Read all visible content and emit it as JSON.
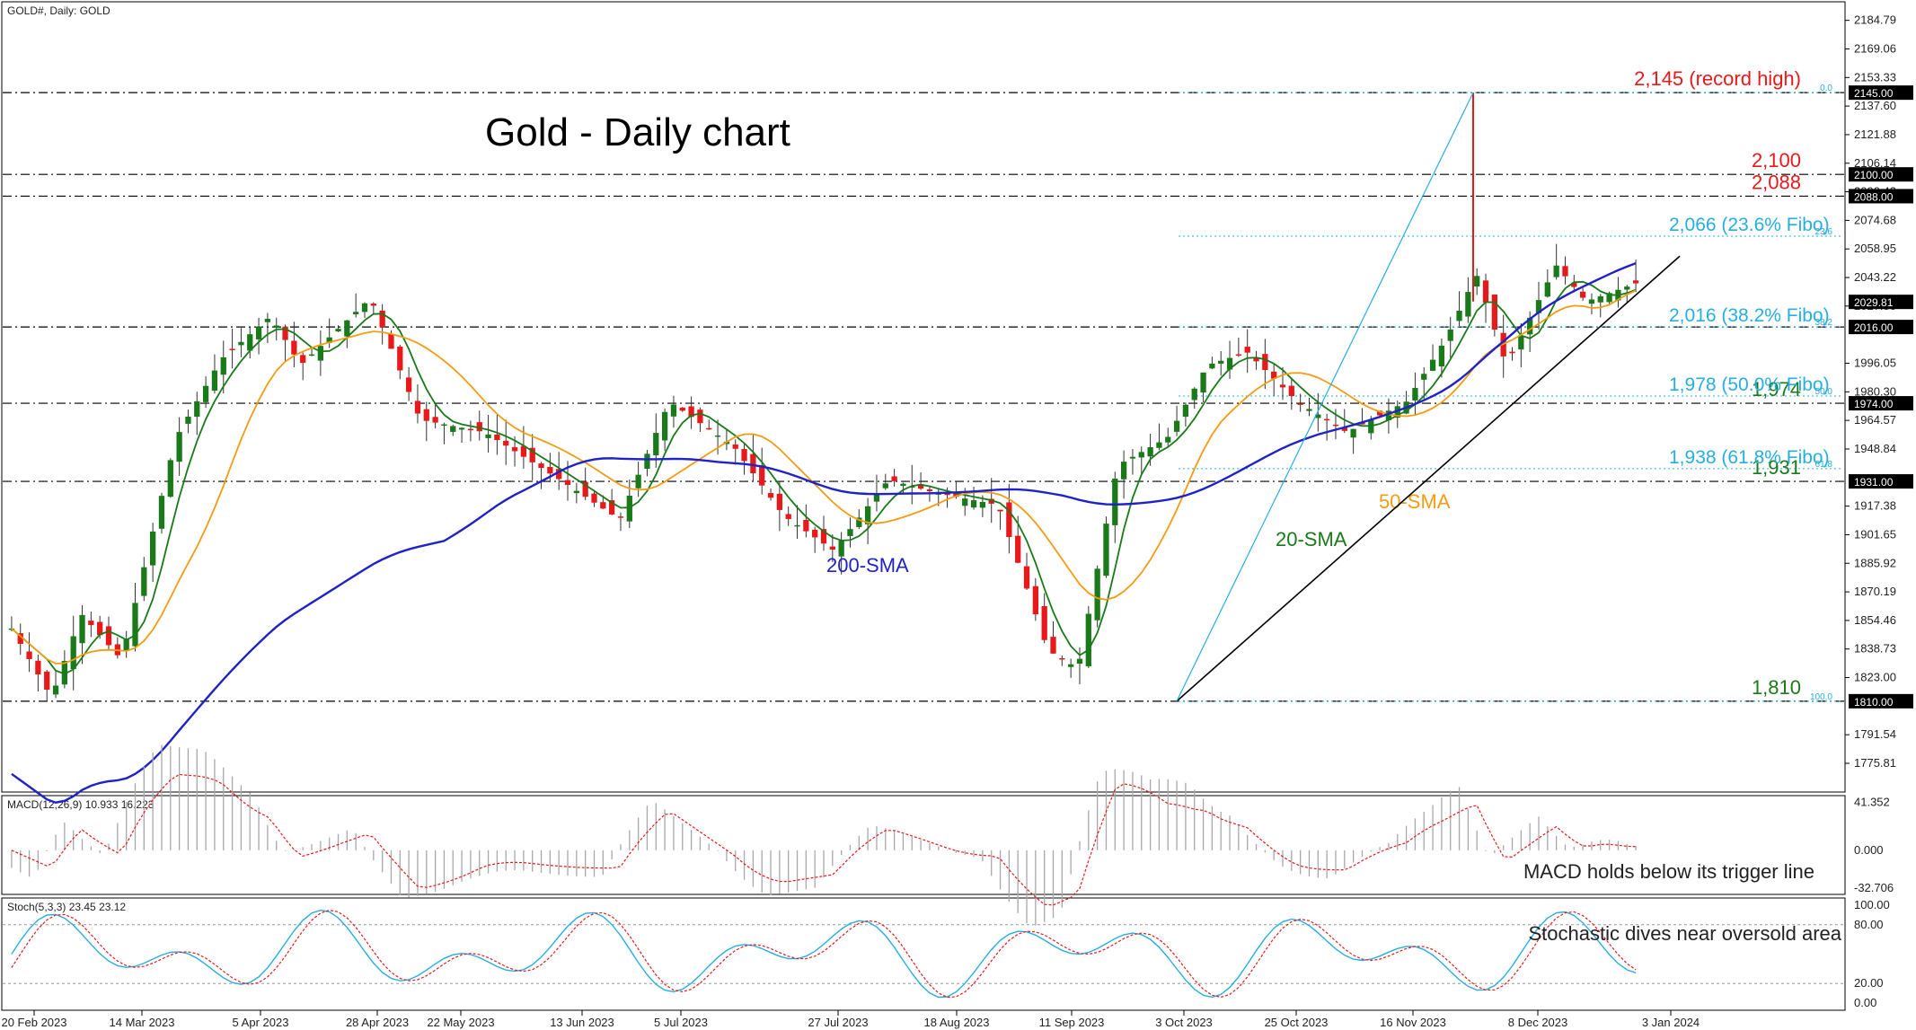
{
  "window": {
    "symbol_label": "GOLD#, Daily:  GOLD",
    "macd_label": "MACD(12,26,9) 10.933 16.223",
    "stoch_label": "Stoch(5,3,3) 23.45 23.12"
  },
  "chart_data": [
    {
      "type": "candlestick",
      "title": "Gold - Daily chart",
      "ylim": [
        1760,
        2195
      ],
      "price_ticks": [
        "2184.79",
        "2169.06",
        "2153.33",
        "2137.60",
        "2121.88",
        "2106.14",
        "2090.42",
        "2074.68",
        "2058.95",
        "2043.22",
        "2027.50",
        "1996.05",
        "1980.30",
        "1964.57",
        "1948.84",
        "1917.38",
        "1901.65",
        "1885.92",
        "1870.19",
        "1854.46",
        "1838.73",
        "1823.00",
        "1791.54",
        "1775.81"
      ],
      "price_tick_values": [
        2184.79,
        2169.06,
        2153.33,
        2137.6,
        2121.88,
        2106.14,
        2090.42,
        2074.68,
        2058.95,
        2043.22,
        2027.5,
        1996.05,
        1980.3,
        1964.57,
        1948.84,
        1917.38,
        1901.65,
        1885.92,
        1870.19,
        1854.46,
        1838.73,
        1823.0,
        1791.54,
        1775.81
      ],
      "price_markers": [
        {
          "label": "2145.00",
          "value": 2145.0,
          "color": "#000000"
        },
        {
          "label": "2100.00",
          "value": 2100.0,
          "color": "#000000"
        },
        {
          "label": "2088.00",
          "value": 2088.0,
          "color": "#000000"
        },
        {
          "label": "2029.81",
          "value": 2029.81,
          "color": "#000000"
        },
        {
          "label": "2016.00",
          "value": 2016.0,
          "color": "#000000"
        },
        {
          "label": "1974.00",
          "value": 1974.0,
          "color": "#000000"
        },
        {
          "label": "1931.00",
          "value": 1931.0,
          "color": "#000000"
        },
        {
          "label": "1810.00",
          "value": 1810.0,
          "color": "#000000"
        }
      ],
      "x_labels": [
        "20 Feb 2023",
        "14 Mar 2023",
        "5 Apr 2023",
        "28 Apr 2023",
        "22 May 2023",
        "13 Jun 2023",
        "5 Jul 2023",
        "27 Jul 2023",
        "18 Aug 2023",
        "11 Sep 2023",
        "3 Oct 2023",
        "25 Oct 2023",
        "16 Nov 2023",
        "8 Dec 2023",
        "3 Jan 2024"
      ],
      "horizontal_levels": [
        {
          "value": 2145,
          "label": "2,145 (record high)",
          "color": "#e8191b"
        },
        {
          "value": 2100,
          "label": "2,100",
          "color": "#e8191b"
        },
        {
          "value": 2088,
          "label": "2,088",
          "color": "#e8191b"
        },
        {
          "value": 2016,
          "label": "",
          "color": "#000000"
        },
        {
          "value": 1974,
          "label": "1,974",
          "color": "#1a7a1a"
        },
        {
          "value": 1931,
          "label": "1,931",
          "color": "#1a7a1a"
        },
        {
          "value": 1810,
          "label": "1,810",
          "color": "#1a7a1a"
        }
      ],
      "fibonacci": {
        "color": "#27aee0",
        "levels": [
          {
            "value": 2145,
            "label": "",
            "tag": "0.0"
          },
          {
            "value": 2066,
            "label": "2,066 (23.6% Fibo)",
            "tag": "23.6"
          },
          {
            "value": 2016,
            "label": "2,016 (38.2% Fibo)",
            "tag": "38.2"
          },
          {
            "value": 1978,
            "label": "1,978 (50.0% Fibo)",
            "tag": "50.0"
          },
          {
            "value": 1938,
            "label": "1,938 (61.8% Fibo)",
            "tag": "61.8"
          },
          {
            "value": 1810,
            "label": "",
            "tag": "100.0"
          }
        ]
      },
      "series": [
        {
          "name": "20-SMA",
          "color": "#1a7a1a"
        },
        {
          "name": "50-SMA",
          "color": "#f39c12"
        },
        {
          "name": "200-SMA",
          "color": "#1f22c9"
        }
      ],
      "colors": {
        "bull": "#1a7a1a",
        "bear": "#e8191b",
        "trendline": "#000000"
      }
    },
    {
      "type": "macd",
      "ylim": [
        -38,
        47
      ],
      "ticks": [
        "41.352",
        "0.000",
        "-32.706"
      ],
      "tick_values": [
        41.352,
        0.0,
        -32.706
      ],
      "annotation": "MACD holds below its trigger line"
    },
    {
      "type": "stochastic",
      "ylim": [
        0,
        100
      ],
      "ticks": [
        "100.00",
        "80.00",
        "20.00",
        "0.00"
      ],
      "tick_values": [
        100,
        80,
        20,
        0
      ],
      "annotation": "Stochastic dives near oversold area"
    }
  ]
}
